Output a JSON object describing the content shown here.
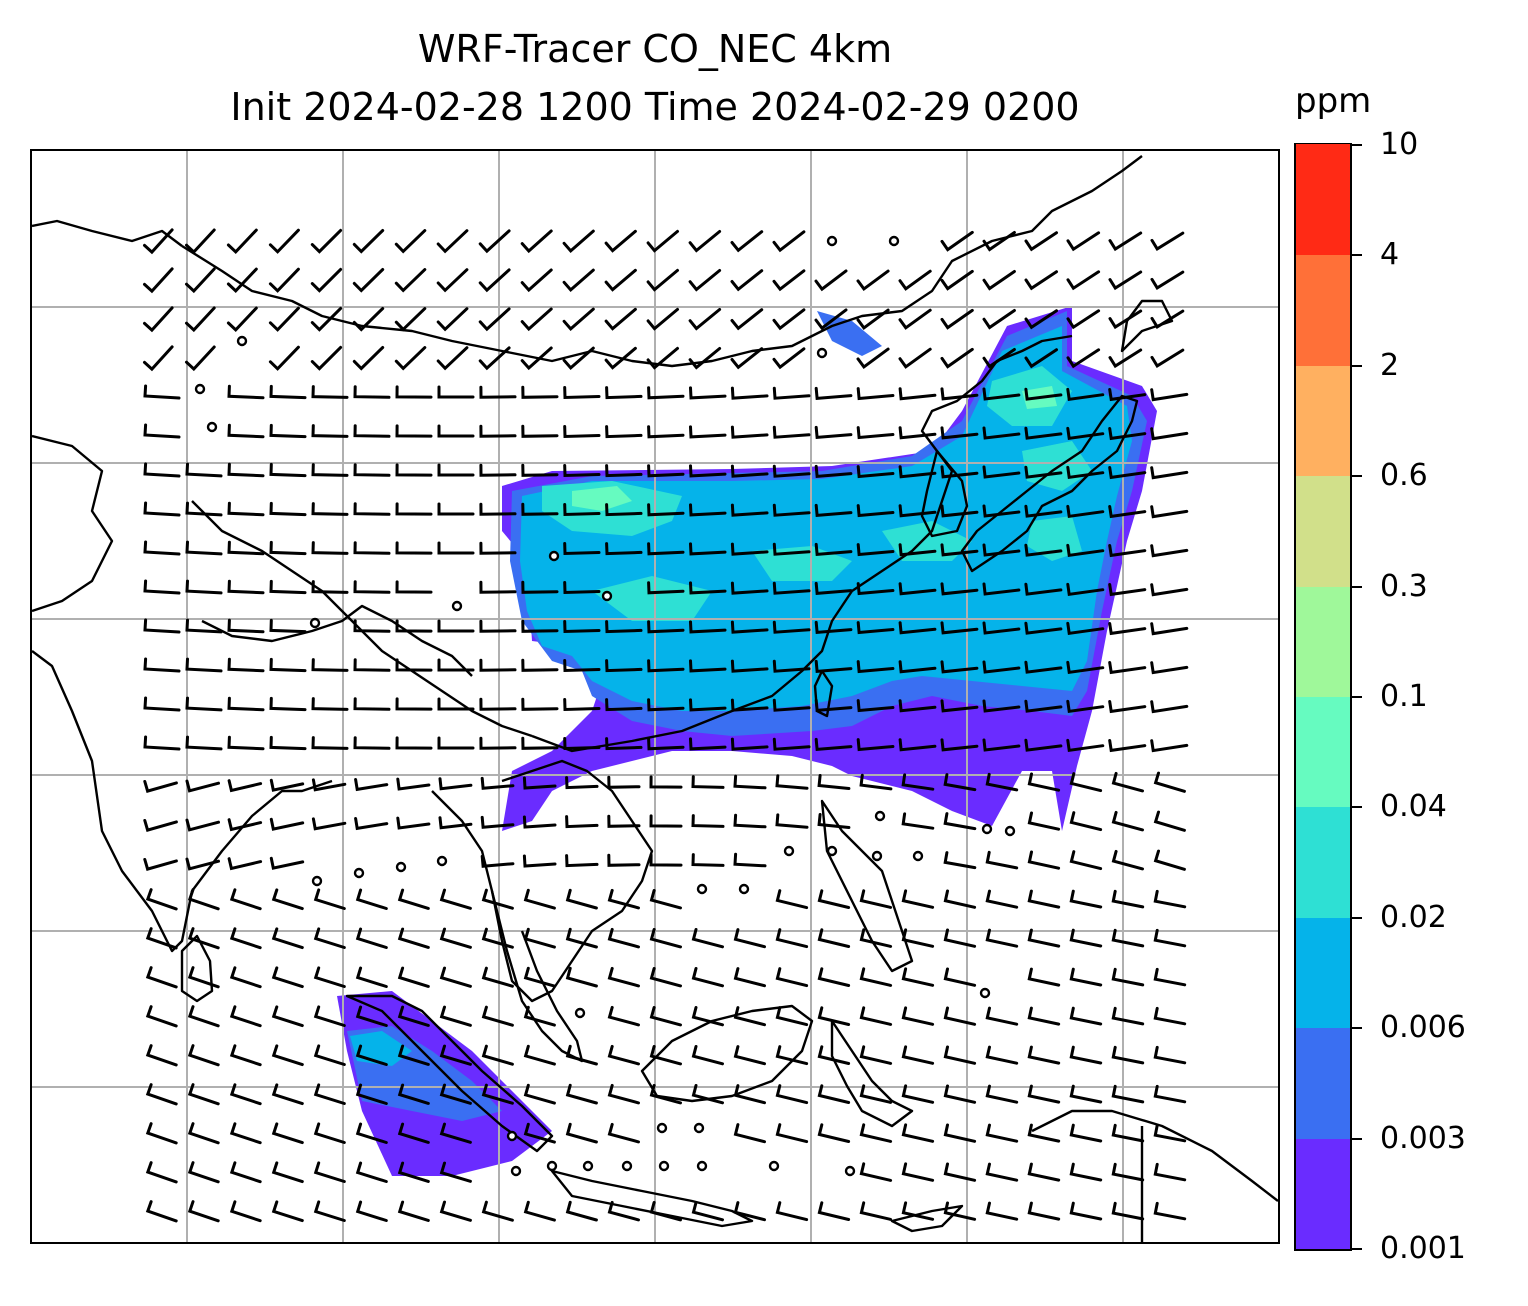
{
  "title": {
    "line1": "WRF-Tracer CO_NEC 4km",
    "line2": "Init 2024-02-28 1200 Time 2024-02-29 0200"
  },
  "colorbar": {
    "unit": "ppm",
    "levels": [
      "0.001",
      "0.003",
      "0.006",
      "0.02",
      "0.04",
      "0.1",
      "0.3",
      "0.6",
      "2",
      "4",
      "10"
    ],
    "colors": [
      "#6a2cff",
      "#3a6ff2",
      "#05b3ea",
      "#2ee0d4",
      "#66fbc0",
      "#9ff89a",
      "#d1e08a",
      "#ffb060",
      "#ff7038",
      "#ff2a15"
    ]
  },
  "map": {
    "gridlines": true,
    "coastline_color": "#000000",
    "grid_color": "#b0b0b0",
    "wind_barbs": true,
    "tracer_field": "CO_NEC"
  }
}
